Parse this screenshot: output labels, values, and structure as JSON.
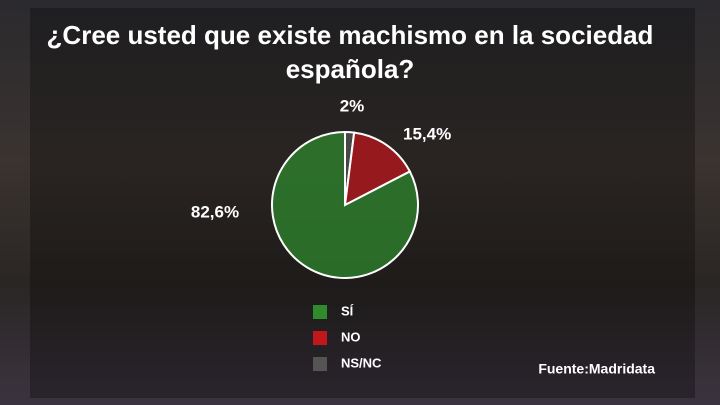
{
  "chart_data": {
    "type": "pie",
    "title": "¿Cree usted que existe machismo en la sociedad española?",
    "categories": [
      "SÍ",
      "NO",
      "NS/NC"
    ],
    "values": [
      82.6,
      15.4,
      2
    ],
    "value_labels": [
      "82,6%",
      "15,4%",
      "2%"
    ],
    "colors": [
      "#2e8b2e",
      "#c0161c",
      "#555555"
    ],
    "source": "Fuente:Madridata"
  }
}
